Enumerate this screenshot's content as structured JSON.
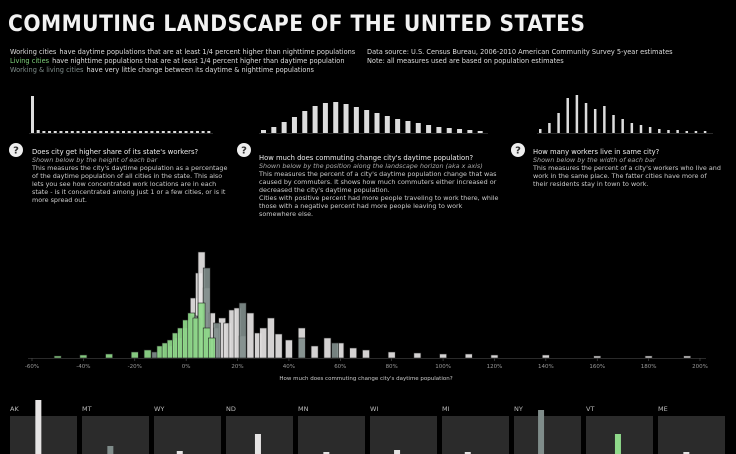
{
  "title": "COMMUTING LANDSCAPE OF THE UNITED STATES",
  "legend": [
    {
      "name": "Working cities",
      "color": "#dcdcdc",
      "text": "have daytime populations that are at least 1/4 percent higher than nighttime populations"
    },
    {
      "name": "Living cities",
      "color": "#7ed07a",
      "text": "have nighttime populations that are at least 1/4 percent higher than daytime population"
    },
    {
      "name": "Working & living cities",
      "color": "#7f8c8a",
      "text": "have very little change between its daytime & nighttime populations"
    }
  ],
  "notes": [
    "Data source: U.S. Census Bureau, 2006-2010 American Community Survey 5-year estimates",
    "Note: all measures used are based on population estimates"
  ],
  "help_icon": "?",
  "panels": [
    {
      "question": "Does city get higher share of its state's workers?",
      "subtitle": "Shown below by the height of each bar",
      "description": [
        "This measures the city's daytime population as a percentage of the daytime population of all cities in the state. This also lets you see how concentrated work  locations are in each state - is it concentrated among just 1 or a few cities, or is it more spread out."
      ],
      "histogram": [
        37,
        3,
        2,
        2,
        2,
        2,
        2,
        2,
        2,
        2,
        2,
        2,
        2,
        2,
        2,
        2,
        2,
        2,
        2,
        2,
        2,
        2,
        2,
        2,
        2,
        2,
        2,
        2,
        2,
        2,
        2,
        2
      ]
    },
    {
      "question": "How much does commuting change city's daytime population?",
      "subtitle": "Shown below by the position along the landscape horizon (aka x axis)",
      "description": [
        "This measures the percent of a city's daytime population change that was caused by commuters. It shows how much commuters either increased or decreased the city's daytime population.",
        "Cities with positive percent had more people traveling to work there, while those with a negative percent had more people leaving to work somewhere else."
      ],
      "histogram": [
        3,
        6,
        11,
        16,
        22,
        27,
        30,
        31,
        29,
        26,
        23,
        20,
        17,
        14,
        12,
        10,
        8,
        6,
        5,
        4,
        3,
        2
      ]
    },
    {
      "question": "How many workers live in same city?",
      "subtitle": "Shown below by the width of each bar",
      "description": [
        "This measures the percent of a city's workers who live and work in the same place. The fatter cities have more of their residents stay in town to work."
      ],
      "histogram": [
        4,
        10,
        20,
        35,
        38,
        30,
        24,
        27,
        18,
        14,
        10,
        8,
        6,
        4,
        3,
        3,
        2,
        2,
        2
      ]
    }
  ],
  "chart_data": {
    "type": "bar-landscape",
    "xlabel": "How much does commuting change city's daytime population?",
    "xlim": [
      -60,
      200
    ],
    "xticks": [
      {
        "value": -60,
        "label": "-60%"
      },
      {
        "value": -40,
        "label": "-40%"
      },
      {
        "value": -20,
        "label": "-20%"
      },
      {
        "value": 0,
        "label": "0%"
      },
      {
        "value": 20,
        "label": "20%"
      },
      {
        "value": 40,
        "label": "40%"
      },
      {
        "value": 60,
        "label": "60%"
      },
      {
        "value": 80,
        "label": "80%"
      },
      {
        "value": 100,
        "label": "100%"
      },
      {
        "value": 120,
        "label": "120%"
      },
      {
        "value": 140,
        "label": "140%"
      },
      {
        "value": 160,
        "label": "160%"
      },
      {
        "value": 180,
        "label": "180%"
      },
      {
        "value": 200,
        "label": "200%"
      }
    ],
    "series": [
      {
        "name": "Working cities",
        "color": "#e6e4e4",
        "x": [
          3,
          5,
          6,
          8,
          10,
          12,
          14,
          16,
          18,
          20,
          22,
          25,
          28,
          30,
          33,
          36,
          40,
          45,
          50,
          55,
          60,
          65,
          70,
          80,
          90,
          100,
          110,
          120,
          140,
          160,
          180,
          195
        ],
        "values": [
          60,
          85,
          106,
          70,
          45,
          30,
          40,
          35,
          48,
          50,
          22,
          45,
          25,
          30,
          40,
          24,
          18,
          30,
          12,
          20,
          15,
          10,
          8,
          6,
          5,
          4,
          4,
          3,
          3,
          2,
          2,
          2
        ]
      },
      {
        "name": "Working & living cities",
        "color": "#7f8c8a",
        "x": [
          -12,
          -6,
          -3,
          0,
          3,
          8,
          12,
          22,
          45,
          58
        ],
        "values": [
          6,
          12,
          20,
          30,
          42,
          90,
          35,
          55,
          20,
          15
        ]
      },
      {
        "name": "Living cities",
        "color": "#8fd98a",
        "x": [
          -50,
          -40,
          -30,
          -20,
          -15,
          -10,
          -8,
          -6,
          -4,
          -2,
          0,
          2,
          4,
          6,
          8,
          10
        ],
        "values": [
          2,
          3,
          4,
          6,
          8,
          12,
          15,
          18,
          25,
          30,
          38,
          45,
          40,
          55,
          30,
          20
        ]
      }
    ]
  },
  "states": [
    {
      "name": "AK",
      "x": [
        50
      ],
      "values": [
        54
      ],
      "color": "#e6e4e4"
    },
    {
      "name": "MT",
      "x": [
        50
      ],
      "values": [
        8
      ],
      "color": "#7f8c8a"
    },
    {
      "name": "WY",
      "x": [
        40
      ],
      "values": [
        3
      ],
      "color": "#e6e4e4"
    },
    {
      "name": "ND",
      "x": [
        64
      ],
      "values": [
        20
      ],
      "color": "#e6e4e4"
    },
    {
      "name": "MN",
      "x": [
        50
      ],
      "values": [
        2
      ],
      "color": "#e6e4e4"
    },
    {
      "name": "WI",
      "x": [
        45
      ],
      "values": [
        4
      ],
      "color": "#e6e4e4"
    },
    {
      "name": "MI",
      "x": [
        40
      ],
      "values": [
        2
      ],
      "color": "#e6e4e4"
    },
    {
      "name": "NY",
      "x": [
        45
      ],
      "values": [
        44
      ],
      "color": "#7f8c8a"
    },
    {
      "name": "VT",
      "x": [
        64
      ],
      "values": [
        20
      ],
      "color": "#8fd98a"
    },
    {
      "name": "ME",
      "x": [
        50
      ],
      "values": [
        2
      ],
      "color": "#e6e4e4"
    }
  ]
}
